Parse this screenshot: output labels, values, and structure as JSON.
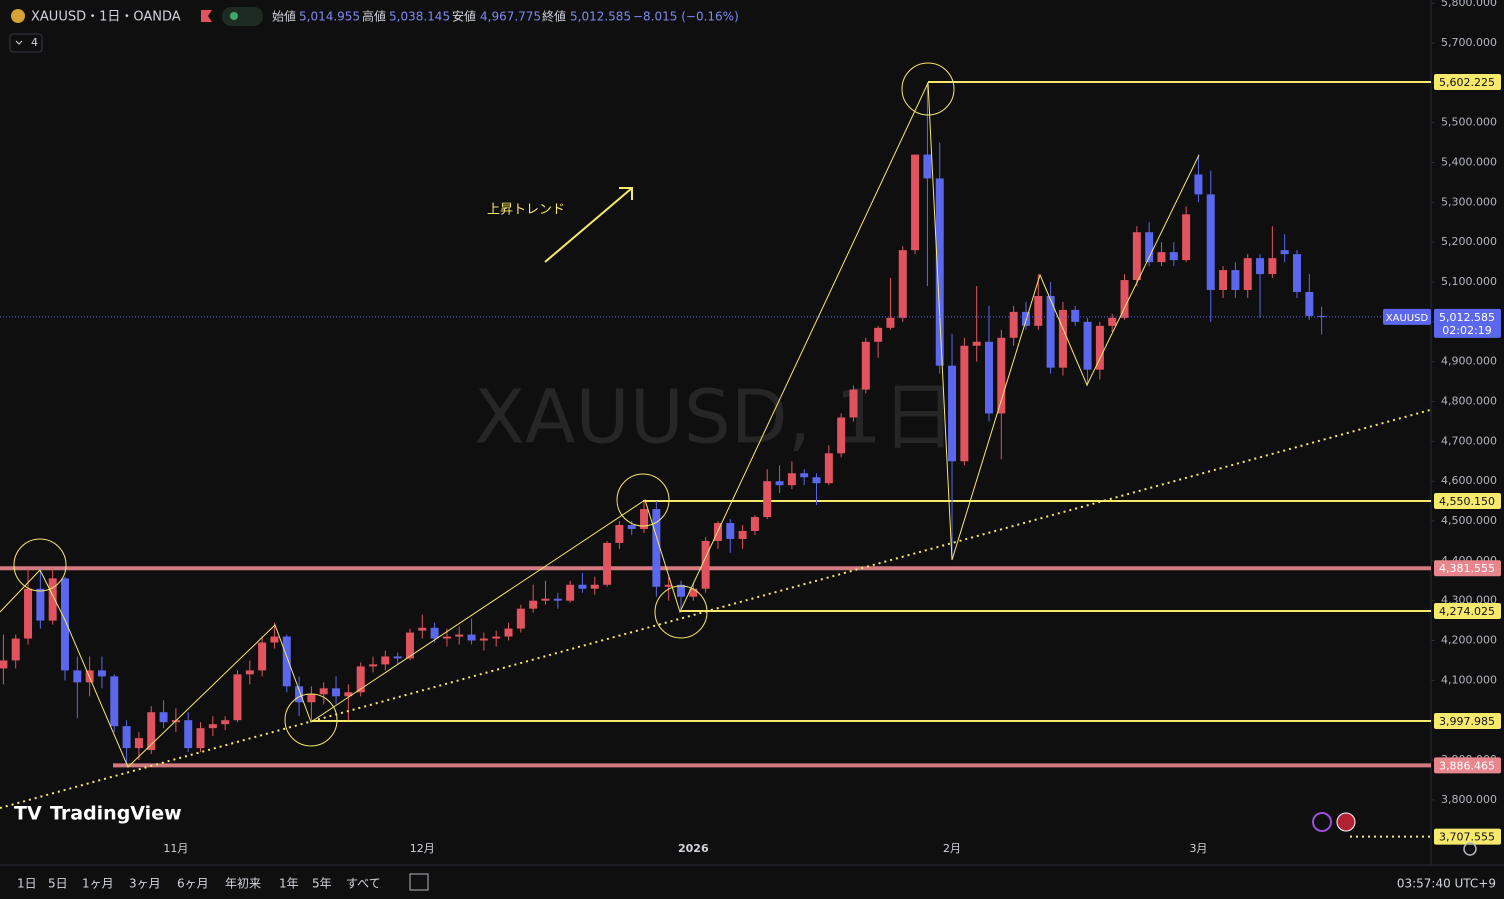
{
  "header": {
    "symbol": "XAUUSD・1日・OANDA",
    "open_label": "始値",
    "open": "5,014.955",
    "high_label": "高値",
    "high": "5,038.145",
    "low_label": "安値",
    "low": "4,967.775",
    "close_label": "終値",
    "close": "5,012.585",
    "change": "−8.015 (−0.16%)",
    "indicator_count": "4"
  },
  "chart_data": {
    "type": "candlestick",
    "categories": [
      null,
      null,
      null,
      null,
      null,
      null,
      null,
      null,
      null,
      null,
      null,
      null,
      null,
      null,
      "11月",
      null,
      null,
      null,
      null,
      null,
      null,
      null,
      null,
      null,
      null,
      null,
      null,
      null,
      null,
      null,
      null,
      null,
      null,
      null,
      "12月",
      null,
      null,
      null,
      null,
      null,
      null,
      null,
      null,
      null,
      null,
      null,
      null,
      null,
      null,
      null,
      null,
      null,
      null,
      null,
      null,
      null,
      "2026",
      null,
      null,
      null,
      null,
      null,
      null,
      null,
      null,
      null,
      null,
      null,
      null,
      null,
      null,
      null,
      null,
      null,
      null,
      null,
      null,
      "2月",
      null,
      null,
      null,
      null,
      null,
      null,
      null,
      null,
      null,
      null,
      null,
      null,
      null,
      null,
      null,
      null,
      null,
      null,
      null,
      "3月",
      null,
      null,
      null,
      null,
      null,
      null,
      null,
      null,
      null,
      null
    ],
    "open": [
      4130,
      4150,
      4205,
      4330,
      4250,
      4356,
      4125,
      4095,
      4125,
      4110,
      3985,
      3930,
      3925,
      4020,
      3995,
      4000,
      3930,
      3980,
      3990,
      4000,
      4115,
      4125,
      4195,
      4210,
      4085,
      4045,
      4065,
      4080,
      4060,
      4070,
      4135,
      4140,
      4160,
      4155,
      4225,
      4232,
      4205,
      4210,
      4215,
      4200,
      4205,
      4210,
      4230,
      4280,
      4300,
      4305,
      4300,
      4340,
      4330,
      4340,
      4445,
      4490,
      4480,
      4530,
      4335,
      4340,
      4310,
      4330,
      4450,
      4495,
      4455,
      4475,
      4510,
      4600,
      4590,
      4620,
      4610,
      4595,
      4670,
      4760,
      4830,
      4950,
      4985,
      5010,
      5180,
      5420,
      5360,
      4890,
      4650,
      4940,
      4950,
      4770,
      4960,
      5025,
      4990,
      5065,
      4885,
      5030,
      5000,
      4880,
      4990,
      5010,
      5105,
      5225,
      5150,
      5175,
      5155,
      5370,
      5320,
      5080,
      5130,
      5080,
      5160,
      5120,
      5180,
      5170,
      5075,
      5014.955
    ],
    "high": [
      4215,
      4215,
      4380,
      4380,
      4381.555,
      4360,
      4160,
      4160,
      4160,
      4115,
      4000,
      3970,
      4035,
      4050,
      4030,
      4020,
      3995,
      4010,
      4010,
      4125,
      4150,
      4210,
      4245,
      4215,
      4110,
      4085,
      4095,
      4110,
      4090,
      4145,
      4160,
      4175,
      4170,
      4230,
      4265,
      4245,
      4230,
      4235,
      4255,
      4220,
      4225,
      4245,
      4290,
      4340,
      4350,
      4320,
      4350,
      4370,
      4360,
      4450,
      4500,
      4500,
      4550,
      4550.15,
      4360,
      4350,
      4345,
      4460,
      4500,
      4505,
      4490,
      4515,
      4630,
      4640,
      4650,
      4630,
      4620,
      4690,
      4770,
      4840,
      4960,
      4990,
      5110,
      5190,
      5420,
      5602.225,
      5450,
      4970,
      4960,
      5090,
      5040,
      4980,
      5040,
      5050,
      5120,
      5100,
      5050,
      5040,
      5010,
      5000,
      5020,
      5120,
      5240,
      5250,
      5200,
      5200,
      5290,
      5420,
      5380,
      5140,
      5150,
      5170,
      5170,
      5240,
      5220,
      5180,
      5120,
      5038.145
    ],
    "low": [
      4090,
      4130,
      4190,
      4230,
      4240,
      4100,
      4005,
      4060,
      4080,
      3970,
      3886.465,
      3900,
      3915,
      3980,
      3970,
      3920,
      3920,
      3960,
      3975,
      3995,
      4090,
      4110,
      4180,
      4070,
      4010,
      3997.985,
      4040,
      4040,
      4000,
      4060,
      4120,
      4125,
      4140,
      4150,
      4205,
      4195,
      4185,
      4190,
      4190,
      4175,
      4185,
      4200,
      4220,
      4270,
      4290,
      4280,
      4295,
      4320,
      4315,
      4335,
      4430,
      4465,
      4470,
      4310,
      4300,
      4274.025,
      4300,
      4320,
      4430,
      4420,
      4430,
      4465,
      4505,
      4570,
      4580,
      4590,
      4540,
      4590,
      4660,
      4750,
      4820,
      4910,
      4980,
      5000,
      5170,
      5090,
      4870,
      4403,
      4640,
      4900,
      4750,
      4655,
      4940,
      4980,
      4980,
      4870,
      4865,
      4990,
      4840,
      4855,
      4975,
      5005,
      5090,
      5140,
      5140,
      5140,
      5150,
      5300,
      5000,
      5060,
      5060,
      5060,
      5010,
      5110,
      5150,
      5060,
      5005,
      4967.775
    ],
    "close": [
      4150,
      4205,
      4330,
      4250,
      4356,
      4125,
      4095,
      4125,
      4110,
      3985,
      3930,
      3955,
      4020,
      3995,
      4000,
      3930,
      3980,
      3990,
      4000,
      4115,
      4125,
      4195,
      4210,
      4085,
      4045,
      4065,
      4080,
      4060,
      4070,
      4135,
      4140,
      4160,
      4155,
      4220,
      4232,
      4205,
      4210,
      4215,
      4200,
      4205,
      4210,
      4230,
      4280,
      4300,
      4305,
      4300,
      4340,
      4330,
      4340,
      4445,
      4490,
      4480,
      4530,
      4335,
      4340,
      4310,
      4330,
      4450,
      4495,
      4455,
      4475,
      4510,
      4600,
      4590,
      4620,
      4610,
      4595,
      4670,
      4760,
      4830,
      4950,
      4985,
      5010,
      5180,
      5420,
      5360,
      4890,
      4650,
      4940,
      4950,
      4770,
      4960,
      5025,
      4990,
      5065,
      4885,
      5030,
      5000,
      4880,
      4990,
      5010,
      5105,
      5225,
      5150,
      5175,
      5155,
      5270,
      5320,
      5080,
      5130,
      5080,
      5160,
      5120,
      5160,
      5170,
      5075,
      5015,
      5012.585
    ],
    "up_color": "#e0535f",
    "down_color": "#5b67ec",
    "ylim": [
      3644,
      5808
    ],
    "yticks": [
      {
        "value": 3800,
        "label": "3,800.000"
      },
      {
        "value": 3900,
        "label": "3,900.000"
      },
      {
        "value": 4000,
        "label": "4,000.000"
      },
      {
        "value": 4100,
        "label": "4,100.000"
      },
      {
        "value": 4200,
        "label": "4,200.000"
      },
      {
        "value": 4300,
        "label": "4,300.000"
      },
      {
        "value": 4400,
        "label": "4,400.000"
      },
      {
        "value": 4500,
        "label": "4,500.000"
      },
      {
        "value": 4600,
        "label": "4,600.000"
      },
      {
        "value": 4700,
        "label": "4,700.000"
      },
      {
        "value": 4800,
        "label": "4,800.000"
      },
      {
        "value": 4900,
        "label": "4,900.000"
      },
      {
        "value": 5000,
        "label": "5,000.000"
      },
      {
        "value": 5100,
        "label": "5,100.000"
      },
      {
        "value": 5200,
        "label": "5,200.000"
      },
      {
        "value": 5300,
        "label": "5,300.000"
      },
      {
        "value": 5400,
        "label": "5,400.000"
      },
      {
        "value": 5500,
        "label": "5,500.000"
      },
      {
        "value": 5600,
        "label": "5,600.000"
      },
      {
        "value": 5700,
        "label": "5,700.000"
      },
      {
        "value": 5800,
        "label": "5,800.000"
      }
    ],
    "levels": [
      {
        "value": 5602.225,
        "label": "5,602.225",
        "color": "#f7e96b"
      },
      {
        "value": 4550.15,
        "label": "4,550.150",
        "color": "#f7e96b"
      },
      {
        "value": 4381.555,
        "label": "4,381.555",
        "color": "#e8868d"
      },
      {
        "value": 4274.025,
        "label": "4,274.025",
        "color": "#f7e96b"
      },
      {
        "value": 3997.985,
        "label": "3,997.985",
        "color": "#f7e96b"
      },
      {
        "value": 3886.465,
        "label": "3,886.465",
        "color": "#e8868d"
      },
      {
        "value": 3707.555,
        "label": "3,707.555",
        "color": "#f7e96b",
        "style": "dotted"
      }
    ],
    "last_price": {
      "value": 5012.585,
      "label": "5,012.585",
      "symbol": "XAUUSD",
      "countdown": "02:02:19",
      "color": "#5b67ec"
    },
    "annotation": "上昇トレンド",
    "watermark": "XAUUSD, 1日"
  },
  "branding": "TradingView",
  "range_buttons": [
    "1日",
    "5日",
    "1ヶ月",
    "3ヶ月",
    "6ヶ月",
    "年初来",
    "1年",
    "5年",
    "すべて"
  ],
  "clock": "03:57:40 UTC+9"
}
